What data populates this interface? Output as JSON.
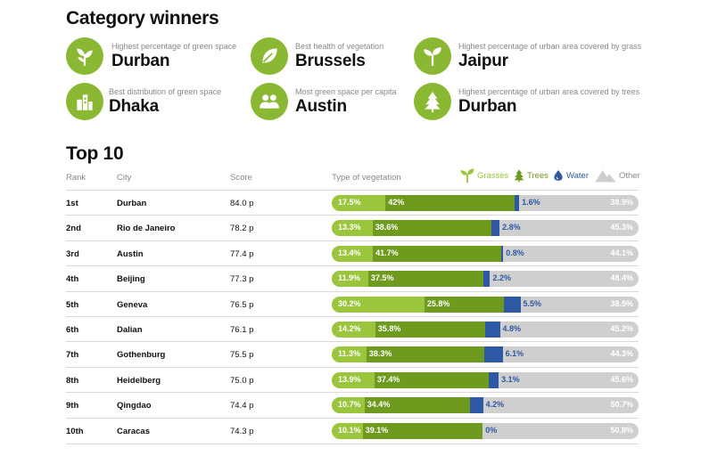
{
  "category_title": "Category winners",
  "winners": [
    {
      "desc": "Highest percentage of green space",
      "city": "Durban",
      "icon": "sprout-icon"
    },
    {
      "desc": "Best health of vegetation",
      "city": "Brussels",
      "icon": "leaf-icon"
    },
    {
      "desc": "Highest percentage of urban area covered by grass",
      "city": "Jaipur",
      "icon": "seedling-icon"
    },
    {
      "desc": "Best distribution of green space",
      "city": "Dhaka",
      "icon": "city-icon"
    },
    {
      "desc": "Most green space per capita",
      "city": "Austin",
      "icon": "people-icon"
    },
    {
      "desc": "Highest percentage of urban area covered by trees",
      "city": "Durban",
      "icon": "tree-icon"
    }
  ],
  "top_title": "Top 10",
  "columns": {
    "rank": "Rank",
    "city": "City",
    "score": "Score",
    "vegetation": "Type of vegetation"
  },
  "colors": {
    "grasses": "#9bc53d",
    "trees": "#6e9a1e",
    "water": "#2e58a4",
    "other": "#cfcfcf",
    "icon_circle": "#8ab832"
  },
  "chart_data": {
    "type": "bar",
    "stacked": true,
    "orientation": "horizontal",
    "legend": [
      "Grasses",
      "Trees",
      "Water",
      "Other"
    ],
    "legend_position": "top-right",
    "unit": "%",
    "rows": [
      {
        "rank": "1st",
        "city": "Durban",
        "score": "84.0 p",
        "grasses": 17.5,
        "trees": 42,
        "water": 1.6,
        "other": 38.9,
        "labels": [
          "17.5%",
          "42%",
          "1.6%",
          "38.9%"
        ]
      },
      {
        "rank": "2nd",
        "city": "Rio de Janeiro",
        "score": "78.2 p",
        "grasses": 13.3,
        "trees": 38.6,
        "water": 2.8,
        "other": 45.3,
        "labels": [
          "13.3%",
          "38.6%",
          "2.8%",
          "45.3%"
        ]
      },
      {
        "rank": "3rd",
        "city": "Austin",
        "score": "77.4 p",
        "grasses": 13.4,
        "trees": 41.7,
        "water": 0.8,
        "other": 44.1,
        "labels": [
          "13.4%",
          "41.7%",
          "0.8%",
          "44.1%"
        ]
      },
      {
        "rank": "4th",
        "city": "Beijing",
        "score": "77.3 p",
        "grasses": 11.9,
        "trees": 37.5,
        "water": 2.2,
        "other": 48.4,
        "labels": [
          "11.9%",
          "37.5%",
          "2.2%",
          "48.4%"
        ]
      },
      {
        "rank": "5th",
        "city": "Geneva",
        "score": "76.5 p",
        "grasses": 30.2,
        "trees": 25.8,
        "water": 5.5,
        "other": 38.5,
        "labels": [
          "30.2%",
          "25.8%",
          "5.5%",
          "38.5%"
        ]
      },
      {
        "rank": "6th",
        "city": "Dalian",
        "score": "76.1 p",
        "grasses": 14.2,
        "trees": 35.8,
        "water": 4.8,
        "other": 45.2,
        "labels": [
          "14.2%",
          "35.8%",
          "4.8%",
          "45.2%"
        ]
      },
      {
        "rank": "7th",
        "city": "Gothenburg",
        "score": "75.5 p",
        "grasses": 11.3,
        "trees": 38.3,
        "water": 6.1,
        "other": 44.3,
        "labels": [
          "11.3%",
          "38.3%",
          "6.1%",
          "44.3%"
        ]
      },
      {
        "rank": "8th",
        "city": "Heidelberg",
        "score": "75.0 p",
        "grasses": 13.9,
        "trees": 37.4,
        "water": 3.1,
        "other": 45.6,
        "labels": [
          "13.9%",
          "37.4%",
          "3.1%",
          "45.6%"
        ]
      },
      {
        "rank": "9th",
        "city": "Qingdao",
        "score": "74.4 p",
        "grasses": 10.7,
        "trees": 34.4,
        "water": 4.2,
        "other": 50.7,
        "labels": [
          "10.7%",
          "34.4%",
          "4.2%",
          "50.7%"
        ]
      },
      {
        "rank": "10th",
        "city": "Caracas",
        "score": "74.3 p",
        "grasses": 10.1,
        "trees": 39.1,
        "water": 0,
        "other": 50.8,
        "labels": [
          "10.1%",
          "39.1%",
          "0%",
          "50.8%"
        ]
      }
    ]
  }
}
